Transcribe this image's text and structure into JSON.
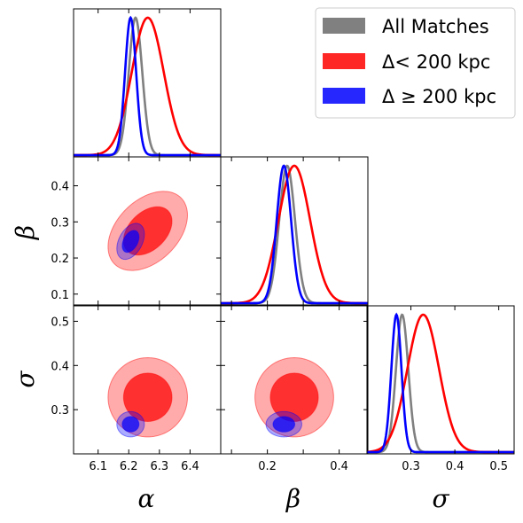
{
  "chart_data": {
    "type": "corner",
    "parameters": [
      {
        "key": "alpha",
        "symbol": "α",
        "range": [
          6.02,
          6.5
        ],
        "ticks": [
          6.1,
          6.2,
          6.3,
          6.4
        ],
        "tick_labels": [
          "6.1",
          "6.2",
          "6.3",
          "6.4"
        ]
      },
      {
        "key": "beta",
        "symbol": "β",
        "range": [
          0.07,
          0.48
        ],
        "ticks": [
          0.1,
          0.2,
          0.3,
          0.4
        ],
        "tick_labels": [
          "0.1",
          "0.2",
          "0.3",
          "0.4"
        ],
        "x_tick_labels": [
          "",
          "0.2",
          "",
          "0.4"
        ]
      },
      {
        "key": "sigma",
        "symbol": "σ",
        "range": [
          0.2,
          0.535
        ],
        "ticks": [
          0.3,
          0.4,
          0.5
        ],
        "tick_labels": [
          "0.3",
          "0.4",
          "0.5"
        ],
        "x_tick_labels": [
          "0.3",
          "0.4",
          "0.5"
        ]
      }
    ],
    "series": [
      {
        "name": "All Matches",
        "color": "#808080",
        "show_contours": false,
        "mean": {
          "alpha": 6.222,
          "beta": 0.255,
          "sigma": 0.28
        },
        "std": {
          "alpha": 0.022,
          "beta": 0.022,
          "sigma": 0.014
        },
        "corr": {
          "alpha_beta": 0.3,
          "alpha_sigma": 0.0,
          "beta_sigma": 0.0
        }
      },
      {
        "name": "Δ< 200 kpc",
        "color": "#ff0000",
        "show_contours": true,
        "mean": {
          "alpha": 6.262,
          "beta": 0.275,
          "sigma": 0.328
        },
        "std": {
          "alpha": 0.052,
          "beta": 0.044,
          "sigma": 0.036
        },
        "corr": {
          "alpha_beta": 0.4,
          "alpha_sigma": 0.0,
          "beta_sigma": 0.0
        }
      },
      {
        "name": "Δ ≥ 200 kpc",
        "color": "#0000ff",
        "show_contours": true,
        "mean": {
          "alpha": 6.206,
          "beta": 0.246,
          "sigma": 0.267
        },
        "std": {
          "alpha": 0.018,
          "beta": 0.02,
          "sigma": 0.0115
        },
        "corr": {
          "alpha_beta": 0.4,
          "alpha_sigma": 0.0,
          "beta_sigma": 0.0
        }
      }
    ],
    "legend": {
      "placement": "top-right",
      "entries": [
        "All Matches",
        "Δ< 200 kpc",
        "Δ ≥ 200 kpc"
      ]
    },
    "grid": false
  }
}
